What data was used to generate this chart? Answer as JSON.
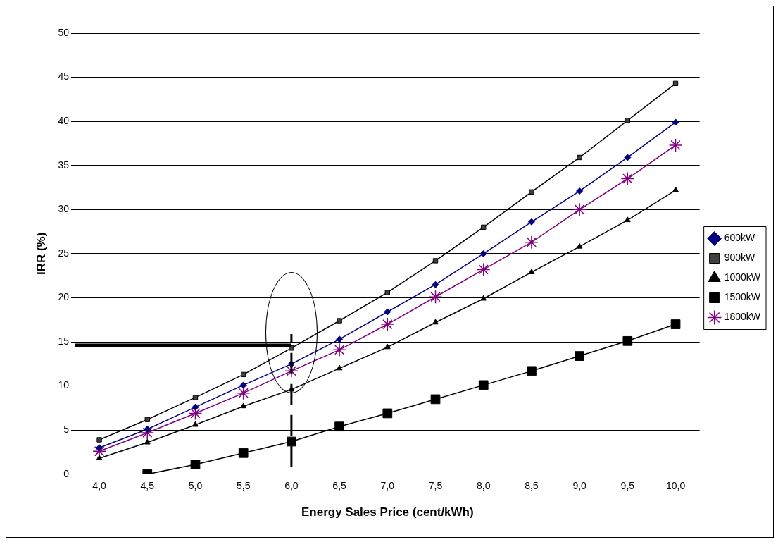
{
  "chart_data": {
    "type": "line",
    "xlabel": "Energy Sales Price (cent/kWh)",
    "ylabel": "IRR (%)",
    "categories": [
      "4,0",
      "4,5",
      "5,0",
      "5,5",
      "6,0",
      "6,5",
      "7,0",
      "7,5",
      "8,0",
      "8,5",
      "9,0",
      "9,5",
      "10,0"
    ],
    "series": [
      {
        "name": "600kW",
        "color": "#000080",
        "marker": "diamond",
        "values": [
          3.0,
          5.1,
          7.6,
          10.1,
          12.5,
          15.3,
          18.4,
          21.5,
          25.0,
          28.6,
          32.1,
          35.9,
          39.9
        ]
      },
      {
        "name": "900kW",
        "color": "#000000",
        "marker": "square",
        "values": [
          3.9,
          6.2,
          8.7,
          11.3,
          14.3,
          17.4,
          20.6,
          24.2,
          28.0,
          32.0,
          35.9,
          40.1,
          44.3
        ]
      },
      {
        "name": "1000kW",
        "color": "#000000",
        "marker": "triangle",
        "values": [
          1.8,
          3.6,
          5.6,
          7.7,
          9.6,
          12.0,
          14.4,
          17.2,
          19.9,
          22.9,
          25.8,
          28.8,
          32.2
        ]
      },
      {
        "name": "1500kW",
        "color": "#000000",
        "marker": "square",
        "values": [
          null,
          0,
          1.1,
          2.4,
          3.7,
          5.4,
          6.9,
          8.5,
          10.1,
          11.7,
          13.4,
          15.1,
          17.0
        ]
      },
      {
        "name": "1800kW",
        "color": "#800080",
        "marker": "cross",
        "values": [
          2.6,
          4.7,
          6.9,
          9.2,
          11.7,
          14.1,
          17.0,
          20.1,
          23.2,
          26.3,
          30.0,
          33.5,
          37.3
        ]
      }
    ],
    "ylim": [
      0,
      50
    ],
    "yticks": [
      0,
      5,
      10,
      15,
      20,
      25,
      30,
      35,
      40,
      45,
      50
    ],
    "grid": "y",
    "legend": "right",
    "ref_lines": [
      {
        "axis": "y",
        "value": 14.6,
        "color": "#000000",
        "line_style": "solid"
      },
      {
        "axis": "x",
        "value": "6,0",
        "color": "#000000",
        "line_style": "dashed"
      }
    ]
  }
}
